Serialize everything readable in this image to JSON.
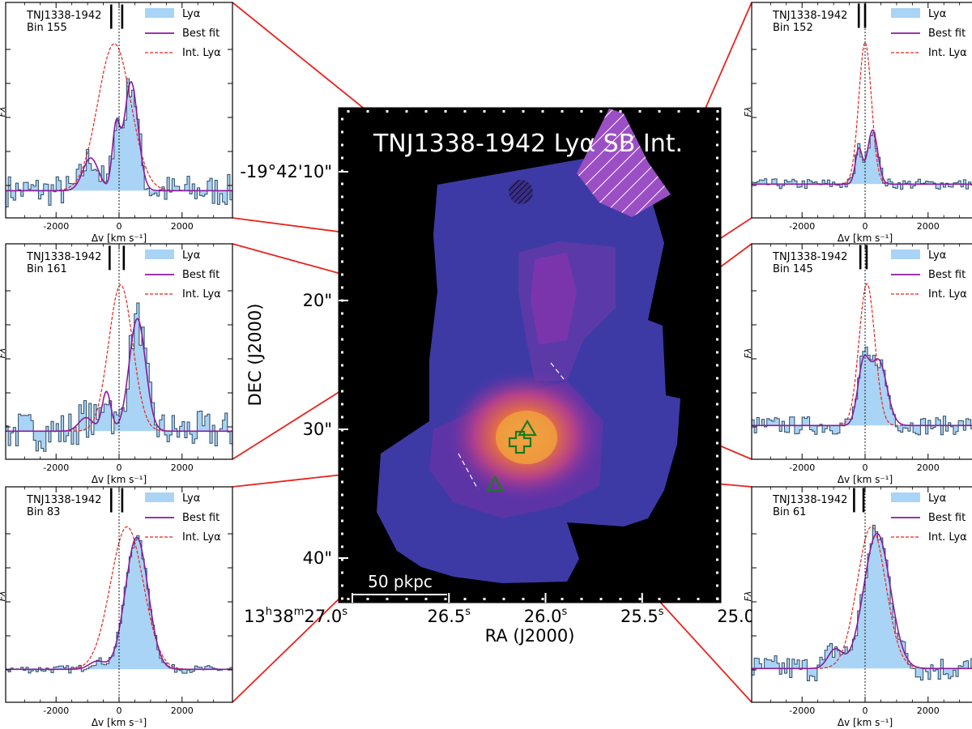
{
  "figure": {
    "map": {
      "title": "TNJ1338-1942 Lyα SB Int.",
      "xlabel": "RA (J2000)",
      "ylabel": "DEC (J2000)",
      "x_ticks": [
        {
          "h": "13",
          "m": "38",
          "s": "27.0",
          "value": 27.0
        },
        {
          "s": "26.5",
          "value": 26.5
        },
        {
          "s": "26.0",
          "value": 26.0
        },
        {
          "s": "25.5",
          "value": 25.5
        },
        {
          "s": "25.0",
          "value": 25.0
        }
      ],
      "y_ticks": [
        {
          "label": "-19°42'10\"",
          "value": 10
        },
        {
          "label": "20\"",
          "value": 20
        },
        {
          "label": "30\"",
          "value": 30
        },
        {
          "label": "40\"",
          "value": 40
        }
      ],
      "scalebar": "50 pkpc",
      "background_color": "#000000",
      "halo_color": "#3d3aa6",
      "core_color": "#f5a43a"
    },
    "spectra_legend": {
      "obs": "Lyα",
      "fit": "Best fit",
      "int": "Int. Lyα"
    },
    "spectra_axes": {
      "xlabel": "Δv [km s⁻¹]",
      "ylabel": "Fλ",
      "xticks": [
        -2000,
        0,
        2000
      ],
      "xlim": [
        -3600,
        3600
      ]
    },
    "colors": {
      "obs_fill": "#aad4f5",
      "obs_line": "#2c4a66",
      "fit": "#8b1a9e",
      "int": "#e8231e",
      "connector": "#e8231e"
    }
  },
  "chart_data": [
    {
      "type": "line",
      "object": "TNJ1338-1942",
      "bin": "Bin 155",
      "side": "left",
      "components": [
        {
          "v": -900,
          "amp": 0.3,
          "sigma": 250
        },
        {
          "v": -100,
          "amp": 0.55,
          "sigma": 120
        },
        {
          "v": 380,
          "amp": 1.0,
          "sigma": 220
        }
      ],
      "int_v": -150,
      "int_sigma": 520,
      "int_amp": 1.35,
      "markers": [
        -250,
        100
      ],
      "noise": 0.15
    },
    {
      "type": "line",
      "object": "TNJ1338-1942",
      "bin": "Bin 161",
      "side": "left",
      "components": [
        {
          "v": -1050,
          "amp": 0.12,
          "sigma": 230
        },
        {
          "v": -400,
          "amp": 0.35,
          "sigma": 140
        },
        {
          "v": 580,
          "amp": 1.0,
          "sigma": 260
        }
      ],
      "int_v": 50,
      "int_sigma": 380,
      "int_amp": 1.3,
      "markers": [
        -300,
        150
      ],
      "noise": 0.18
    },
    {
      "type": "line",
      "object": "TNJ1338-1942",
      "bin": "Bin 83",
      "side": "left",
      "components": [
        {
          "v": -700,
          "amp": 0.06,
          "sigma": 250
        },
        {
          "v": 560,
          "amp": 1.0,
          "sigma": 360
        }
      ],
      "int_v": 250,
      "int_sigma": 520,
      "int_amp": 1.08,
      "markers": [
        -250,
        100
      ],
      "noise": 0.03
    },
    {
      "type": "line",
      "object": "TNJ1338-1942",
      "bin": "Bin 152",
      "side": "right",
      "components": [
        {
          "v": -200,
          "amp": 0.26,
          "sigma": 110
        },
        {
          "v": 240,
          "amp": 0.4,
          "sigma": 160
        }
      ],
      "int_v": 0,
      "int_sigma": 200,
      "int_amp": 1.05,
      "markers": [
        -200,
        0
      ],
      "noise": 0.04
    },
    {
      "type": "line",
      "object": "TNJ1338-1942",
      "bin": "Bin 145",
      "side": "right",
      "components": [
        {
          "v": -60,
          "amp": 0.42,
          "sigma": 180
        },
        {
          "v": 430,
          "amp": 0.48,
          "sigma": 260
        }
      ],
      "int_v": 60,
      "int_sigma": 250,
      "int_amp": 1.05,
      "markers": [
        -150,
        50
      ],
      "noise": 0.07
    },
    {
      "type": "line",
      "object": "TNJ1338-1942",
      "bin": "Bin 61",
      "side": "right",
      "components": [
        {
          "v": -950,
          "amp": 0.14,
          "sigma": 230
        },
        {
          "v": 380,
          "amp": 1.0,
          "sigma": 420
        }
      ],
      "int_v": 200,
      "int_sigma": 450,
      "int_amp": 1.05,
      "markers": [
        -350,
        -50
      ],
      "noise": 0.1
    }
  ]
}
